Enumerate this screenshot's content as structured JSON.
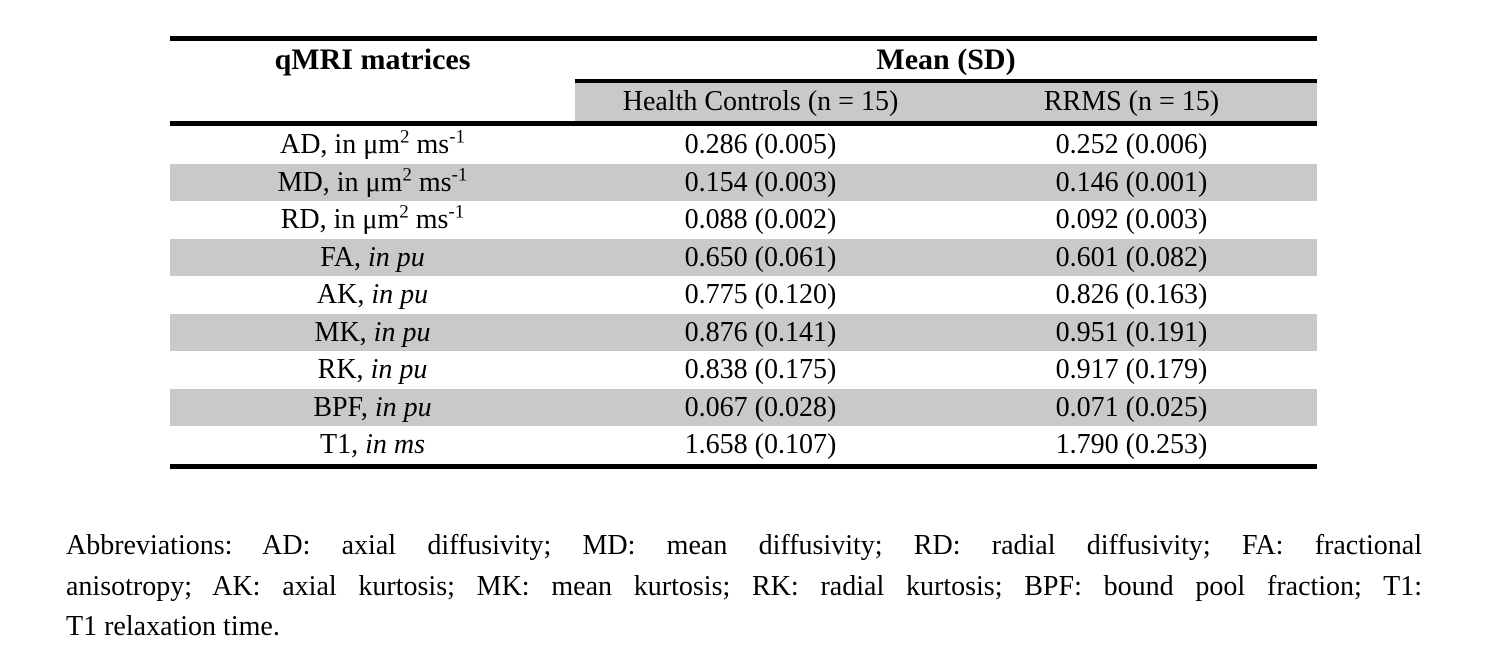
{
  "table": {
    "corner_header": "qMRI matrices",
    "group_header": "Mean (SD)",
    "subheaders": [
      "Health Controls (n = 15)",
      "RRMS (n = 15)"
    ],
    "rows": [
      {
        "name": "AD",
        "label": [
          {
            "t": "AD, in μm"
          },
          {
            "t": "2",
            "sup": true
          },
          {
            "t": " ms"
          },
          {
            "t": "-1",
            "sup": true
          }
        ],
        "health_controls": "0.286 (0.005)",
        "rrms": "0.252 (0.006)",
        "shaded": false
      },
      {
        "name": "MD",
        "label": [
          {
            "t": "MD, in μm"
          },
          {
            "t": "2",
            "sup": true
          },
          {
            "t": " ms"
          },
          {
            "t": "-1",
            "sup": true
          }
        ],
        "health_controls": "0.154 (0.003)",
        "rrms": "0.146 (0.001)",
        "shaded": true
      },
      {
        "name": "RD",
        "label": [
          {
            "t": "RD, in μm"
          },
          {
            "t": "2",
            "sup": true
          },
          {
            "t": " ms"
          },
          {
            "t": "-1",
            "sup": true
          }
        ],
        "health_controls": "0.088 (0.002)",
        "rrms": "0.092 (0.003)",
        "shaded": false
      },
      {
        "name": "FA",
        "label": [
          {
            "t": "FA, "
          },
          {
            "t": "in pu",
            "i": true
          }
        ],
        "health_controls": "0.650 (0.061)",
        "rrms": "0.601 (0.082)",
        "shaded": true
      },
      {
        "name": "AK",
        "label": [
          {
            "t": "AK, "
          },
          {
            "t": "in pu",
            "i": true
          }
        ],
        "health_controls": "0.775 (0.120)",
        "rrms": "0.826 (0.163)",
        "shaded": false
      },
      {
        "name": "MK",
        "label": [
          {
            "t": "MK, "
          },
          {
            "t": "in pu",
            "i": true
          }
        ],
        "health_controls": "0.876 (0.141)",
        "rrms": "0.951 (0.191)",
        "shaded": true
      },
      {
        "name": "RK",
        "label": [
          {
            "t": "RK, "
          },
          {
            "t": "in pu",
            "i": true
          }
        ],
        "health_controls": "0.838 (0.175)",
        "rrms": "0.917 (0.179)",
        "shaded": false
      },
      {
        "name": "BPF",
        "label": [
          {
            "t": "BPF, "
          },
          {
            "t": "in pu",
            "i": true
          }
        ],
        "health_controls": "0.067 (0.028)",
        "rrms": "0.071 (0.025)",
        "shaded": true
      },
      {
        "name": "T1",
        "label": [
          {
            "t": "T1, "
          },
          {
            "t": "in ms",
            "i": true
          }
        ],
        "health_controls": "1.658 (0.107)",
        "rrms": "1.790 (0.253)",
        "shaded": false
      }
    ]
  },
  "footnote": {
    "lines": [
      "Abbreviations: AD: axial diffusivity; MD: mean diffusivity; RD: radial diffusivity; FA: fractional",
      "anisotropy; AK: axial kurtosis; MK: mean kurtosis; RK: radial kurtosis; BPF: bound pool fraction; T1:",
      "T1 relaxation time."
    ]
  },
  "colors": {
    "row_shade": "#c9c9c9",
    "rule": "#000000",
    "text": "#000000",
    "background": "#ffffff"
  }
}
